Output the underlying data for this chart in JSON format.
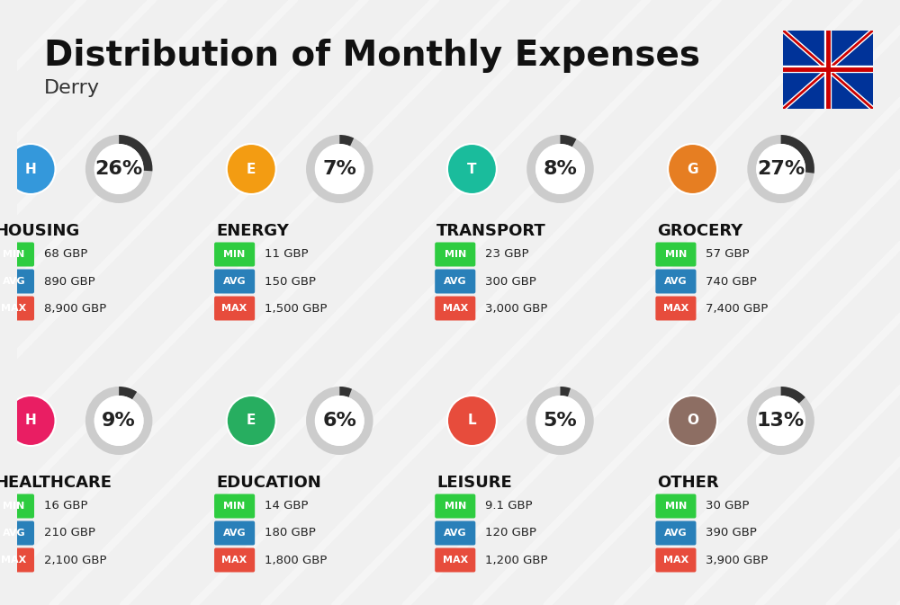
{
  "title": "Distribution of Monthly Expenses",
  "subtitle": "Derry",
  "background_color": "#f0f0f0",
  "categories": [
    {
      "name": "HOUSING",
      "percent": 26,
      "min": "68 GBP",
      "avg": "890 GBP",
      "max": "8,900 GBP",
      "icon": "housing",
      "col": 0,
      "row": 0
    },
    {
      "name": "ENERGY",
      "percent": 7,
      "min": "11 GBP",
      "avg": "150 GBP",
      "max": "1,500 GBP",
      "icon": "energy",
      "col": 1,
      "row": 0
    },
    {
      "name": "TRANSPORT",
      "percent": 8,
      "min": "23 GBP",
      "avg": "300 GBP",
      "max": "3,000 GBP",
      "icon": "transport",
      "col": 2,
      "row": 0
    },
    {
      "name": "GROCERY",
      "percent": 27,
      "min": "57 GBP",
      "avg": "740 GBP",
      "max": "7,400 GBP",
      "icon": "grocery",
      "col": 3,
      "row": 0
    },
    {
      "name": "HEALTHCARE",
      "percent": 9,
      "min": "16 GBP",
      "avg": "210 GBP",
      "max": "2,100 GBP",
      "icon": "healthcare",
      "col": 0,
      "row": 1
    },
    {
      "name": "EDUCATION",
      "percent": 6,
      "min": "14 GBP",
      "avg": "180 GBP",
      "max": "1,800 GBP",
      "icon": "education",
      "col": 1,
      "row": 1
    },
    {
      "name": "LEISURE",
      "percent": 5,
      "min": "9.1 GBP",
      "avg": "120 GBP",
      "max": "1,200 GBP",
      "icon": "leisure",
      "col": 2,
      "row": 1
    },
    {
      "name": "OTHER",
      "percent": 13,
      "min": "30 GBP",
      "avg": "390 GBP",
      "max": "3,900 GBP",
      "icon": "other",
      "col": 3,
      "row": 1
    }
  ],
  "min_color": "#2ecc40",
  "avg_color": "#2980b9",
  "max_color": "#e74c3c",
  "label_color": "#ffffff",
  "ring_filled_color": "#333333",
  "ring_empty_color": "#cccccc",
  "title_fontsize": 28,
  "subtitle_fontsize": 16,
  "category_fontsize": 13,
  "value_fontsize": 12,
  "percent_fontsize": 16
}
